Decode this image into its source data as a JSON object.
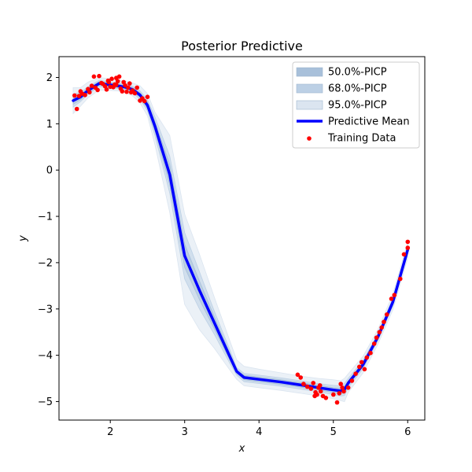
{
  "chart_data": {
    "type": "line",
    "title": "Posterior Predictive",
    "xlabel": "x",
    "ylabel": "y",
    "xlim": [
      1.31,
      6.23
    ],
    "ylim": [
      -5.4,
      2.45
    ],
    "xticks": [
      2,
      3,
      4,
      5,
      6
    ],
    "yticks": [
      -5,
      -4,
      -3,
      -2,
      -1,
      0,
      1,
      2
    ],
    "xtick_labels": [
      "2",
      "3",
      "4",
      "5",
      "6"
    ],
    "ytick_labels": [
      "−5",
      "−4",
      "−3",
      "−2",
      "−1",
      "0",
      "1",
      "2"
    ],
    "grid": false,
    "legend_position": "top-right",
    "legend": [
      {
        "label": "50.0%-PICP",
        "kind": "band",
        "color": "#a8c0da"
      },
      {
        "label": "68.0%-PICP",
        "kind": "band",
        "color": "#bcd0e5"
      },
      {
        "label": "95.0%-PICP",
        "kind": "band",
        "color": "#dbe5f0"
      },
      {
        "label": "Predictive Mean",
        "kind": "line",
        "color": "#0000ff"
      },
      {
        "label": "Training Data",
        "kind": "marker",
        "color": "#ff0000"
      }
    ],
    "mean": {
      "name": "Predictive Mean",
      "x": [
        1.5,
        1.6,
        1.7,
        1.85,
        2.0,
        2.1,
        2.2,
        2.3,
        2.4,
        2.5,
        2.6,
        2.8,
        3.0,
        3.2,
        3.4,
        3.6,
        3.7,
        3.8,
        4.0,
        4.3,
        4.6,
        4.8,
        5.0,
        5.1,
        5.15,
        5.2,
        5.4,
        5.6,
        5.8,
        6.0
      ],
      "y": [
        1.5,
        1.58,
        1.72,
        1.87,
        1.84,
        1.82,
        1.79,
        1.74,
        1.62,
        1.4,
        0.95,
        -0.1,
        -1.85,
        -2.6,
        -3.3,
        -4.0,
        -4.35,
        -4.48,
        -4.52,
        -4.58,
        -4.65,
        -4.7,
        -4.75,
        -4.77,
        -4.74,
        -4.6,
        -4.2,
        -3.6,
        -2.85,
        -1.72
      ]
    },
    "bands": [
      {
        "name": "95.0%-PICP",
        "color": "#dbe5f0",
        "x": [
          1.5,
          1.6,
          1.7,
          1.85,
          2.0,
          2.1,
          2.2,
          2.3,
          2.4,
          2.5,
          2.6,
          2.8,
          3.0,
          3.2,
          3.4,
          3.6,
          3.7,
          3.8,
          4.0,
          4.3,
          4.6,
          4.8,
          5.0,
          5.1,
          5.15,
          5.2,
          5.4,
          5.6,
          5.8,
          6.0
        ],
        "lower": [
          1.22,
          1.38,
          1.56,
          1.73,
          1.72,
          1.71,
          1.67,
          1.6,
          1.45,
          1.17,
          0.55,
          -0.92,
          -2.9,
          -3.45,
          -3.85,
          -4.3,
          -4.52,
          -4.66,
          -4.7,
          -4.76,
          -4.83,
          -4.88,
          -4.94,
          -4.98,
          -5.0,
          -4.8,
          -4.38,
          -3.76,
          -3.02,
          -1.9
        ],
        "upper": [
          1.78,
          1.78,
          1.9,
          2.0,
          1.97,
          1.95,
          1.92,
          1.88,
          1.82,
          1.65,
          1.25,
          0.75,
          -0.95,
          -1.82,
          -2.75,
          -3.65,
          -4.1,
          -4.24,
          -4.3,
          -4.38,
          -4.46,
          -4.5,
          -4.53,
          -4.55,
          -4.5,
          -4.4,
          -4.02,
          -3.44,
          -2.68,
          -1.55
        ]
      },
      {
        "name": "68.0%-PICP",
        "color": "#bcd0e5",
        "x": [
          1.5,
          1.6,
          1.7,
          1.85,
          2.0,
          2.1,
          2.2,
          2.3,
          2.4,
          2.5,
          2.6,
          2.8,
          3.0,
          3.2,
          3.4,
          3.6,
          3.7,
          3.8,
          4.0,
          4.3,
          4.6,
          4.8,
          5.0,
          5.1,
          5.15,
          5.2,
          5.4,
          5.6,
          5.8,
          6.0
        ],
        "lower": [
          1.36,
          1.48,
          1.64,
          1.8,
          1.78,
          1.76,
          1.73,
          1.67,
          1.53,
          1.28,
          0.75,
          -0.5,
          -2.35,
          -3.0,
          -3.55,
          -4.15,
          -4.43,
          -4.57,
          -4.61,
          -4.67,
          -4.74,
          -4.79,
          -4.85,
          -4.88,
          -4.87,
          -4.7,
          -4.29,
          -3.68,
          -2.93,
          -1.81
        ],
        "upper": [
          1.64,
          1.68,
          1.8,
          1.94,
          1.9,
          1.88,
          1.85,
          1.81,
          1.71,
          1.52,
          1.15,
          0.3,
          -1.35,
          -2.2,
          -3.05,
          -3.85,
          -4.27,
          -4.39,
          -4.43,
          -4.49,
          -4.56,
          -4.61,
          -4.65,
          -4.66,
          -4.61,
          -4.5,
          -4.11,
          -3.52,
          -2.77,
          -1.63
        ]
      },
      {
        "name": "50.0%-PICP",
        "color": "#a8c0da",
        "x": [
          1.5,
          1.6,
          1.7,
          1.85,
          2.0,
          2.1,
          2.2,
          2.3,
          2.4,
          2.5,
          2.6,
          2.8,
          3.0,
          3.2,
          3.4,
          3.6,
          3.7,
          3.8,
          4.0,
          4.3,
          4.6,
          4.8,
          5.0,
          5.1,
          5.15,
          5.2,
          5.4,
          5.6,
          5.8,
          6.0
        ],
        "lower": [
          1.42,
          1.52,
          1.67,
          1.83,
          1.8,
          1.78,
          1.75,
          1.7,
          1.57,
          1.33,
          0.85,
          -0.32,
          -2.1,
          -2.8,
          -3.43,
          -4.08,
          -4.39,
          -4.53,
          -4.57,
          -4.63,
          -4.7,
          -4.75,
          -4.8,
          -4.83,
          -4.81,
          -4.65,
          -4.25,
          -3.64,
          -2.89,
          -1.77
        ],
        "upper": [
          1.58,
          1.64,
          1.77,
          1.91,
          1.88,
          1.86,
          1.83,
          1.78,
          1.67,
          1.47,
          1.05,
          0.12,
          -1.6,
          -2.4,
          -3.17,
          -3.92,
          -4.31,
          -4.43,
          -4.47,
          -4.53,
          -4.6,
          -4.65,
          -4.7,
          -4.71,
          -4.67,
          -4.55,
          -4.15,
          -3.56,
          -2.81,
          -1.67
        ]
      }
    ],
    "training_data": {
      "name": "Training Data",
      "color": "#ff0000",
      "x": [
        1.52,
        1.55,
        1.58,
        1.62,
        1.66,
        1.7,
        1.72,
        1.75,
        1.78,
        1.8,
        1.83,
        1.85,
        1.88,
        1.9,
        1.93,
        1.95,
        1.97,
        2.0,
        2.02,
        2.04,
        2.06,
        2.08,
        2.1,
        2.12,
        2.14,
        2.16,
        2.18,
        2.2,
        2.22,
        2.24,
        2.26,
        2.28,
        2.3,
        2.33,
        2.36,
        2.4,
        2.43,
        2.46,
        2.5,
        1.6,
        1.98,
        2.08,
        4.52,
        4.56,
        4.6,
        4.65,
        4.7,
        4.73,
        4.76,
        4.78,
        4.8,
        4.83,
        4.86,
        4.9,
        4.75,
        4.82,
        5.0,
        5.05,
        5.08,
        5.1,
        5.12,
        5.14,
        5.2,
        5.25,
        5.3,
        5.35,
        5.38,
        5.42,
        5.45,
        5.5,
        5.55,
        5.58,
        5.62,
        5.65,
        5.68,
        5.72,
        5.78,
        5.82,
        5.9,
        5.95,
        6.0,
        6.0
      ],
      "y": [
        1.61,
        1.32,
        1.6,
        1.65,
        1.62,
        1.75,
        1.68,
        1.82,
        2.02,
        1.78,
        1.73,
        2.03,
        1.88,
        1.86,
        1.81,
        1.74,
        1.93,
        1.8,
        1.97,
        1.79,
        1.85,
        1.99,
        1.92,
        2.02,
        1.76,
        1.7,
        1.9,
        1.83,
        1.69,
        1.78,
        1.87,
        1.68,
        1.72,
        1.66,
        1.78,
        1.5,
        1.55,
        1.49,
        1.58,
        1.7,
        1.9,
        1.84,
        -4.42,
        -4.48,
        -4.62,
        -4.68,
        -4.72,
        -4.6,
        -4.8,
        -4.85,
        -4.7,
        -4.78,
        -4.88,
        -4.92,
        -4.88,
        -4.65,
        -4.85,
        -5.02,
        -4.82,
        -4.62,
        -4.7,
        -4.78,
        -4.7,
        -4.55,
        -4.4,
        -4.25,
        -4.15,
        -4.3,
        -4.05,
        -3.95,
        -3.75,
        -3.62,
        -3.5,
        -3.4,
        -3.28,
        -3.12,
        -2.78,
        -2.7,
        -2.35,
        -1.82,
        -1.68,
        -1.55
      ]
    }
  }
}
